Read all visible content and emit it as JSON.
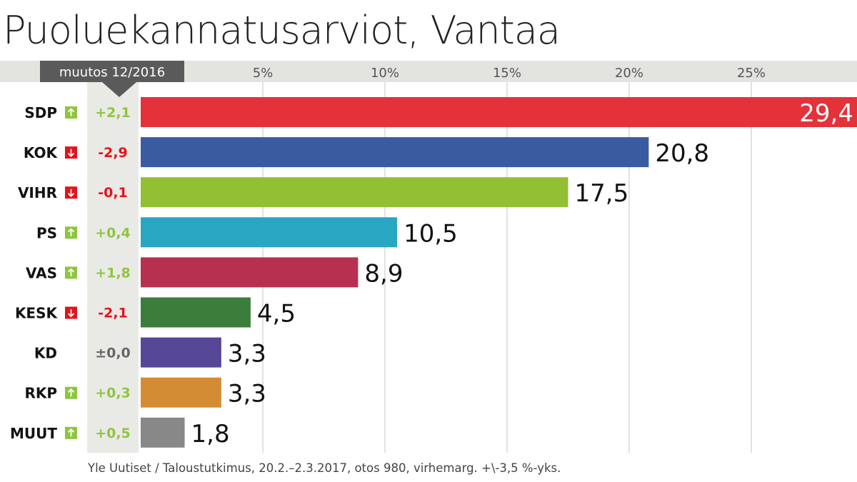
{
  "title": "Puoluekannatusarviot, Vantaa",
  "change_header": "muutos 12/2016",
  "source": "Yle Uutiset / Taloustutkimus, 20.2.–2.3.2017, otos 980, virhemarg. +\\-3,5 %-yks.",
  "colors": {
    "band": "#e3e3df",
    "change_column": "#e9e9e6",
    "header_box": "#5a5a5a",
    "grid": "#c4c4c4",
    "up": "#8dc63f",
    "down": "#e3131b",
    "neutral": "#666666"
  },
  "chart_data": {
    "type": "bar",
    "orientation": "horizontal",
    "xlim": [
      0,
      29.4
    ],
    "x_ticks": [
      "5%",
      "10%",
      "15%",
      "20%",
      "25%"
    ],
    "x_tick_values": [
      5,
      10,
      15,
      20,
      25
    ],
    "grid": true,
    "categories": [
      "SDP",
      "KOK",
      "VIHR",
      "PS",
      "VAS",
      "KESK",
      "KD",
      "RKP",
      "MUUT"
    ],
    "values": [
      29.4,
      20.8,
      17.5,
      10.5,
      8.9,
      4.5,
      3.3,
      3.3,
      1.8
    ],
    "value_labels": [
      "29,4",
      "20,8",
      "17,5",
      "10,5",
      "8,9",
      "4,5",
      "3,3",
      "3,3",
      "1,8"
    ],
    "changes": [
      "+2,1",
      "-2,9",
      "-0,1",
      "+0,4",
      "+1,8",
      "-2,1",
      "±0,0",
      "+0,3",
      "+0,5"
    ],
    "change_direction": [
      "up",
      "down",
      "down",
      "up",
      "up",
      "down",
      "none",
      "up",
      "up"
    ],
    "bar_colors": [
      "#e3323a",
      "#3a5ba0",
      "#92bf33",
      "#28a6c2",
      "#b8304f",
      "#3b7d3a",
      "#574797",
      "#d48c34",
      "#888888"
    ]
  }
}
